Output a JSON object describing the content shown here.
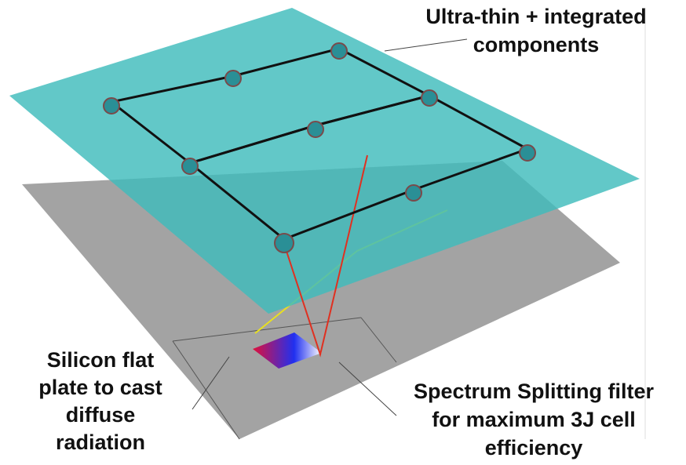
{
  "labels": {
    "top": [
      "Ultra-thin + integrated",
      "components"
    ],
    "left": [
      "Silicon flat",
      "plate to cast",
      "diffuse",
      "radiation"
    ],
    "right": [
      "Spectrum Splitting filter",
      "for maximum 3J cell",
      "efficiency"
    ]
  }
}
